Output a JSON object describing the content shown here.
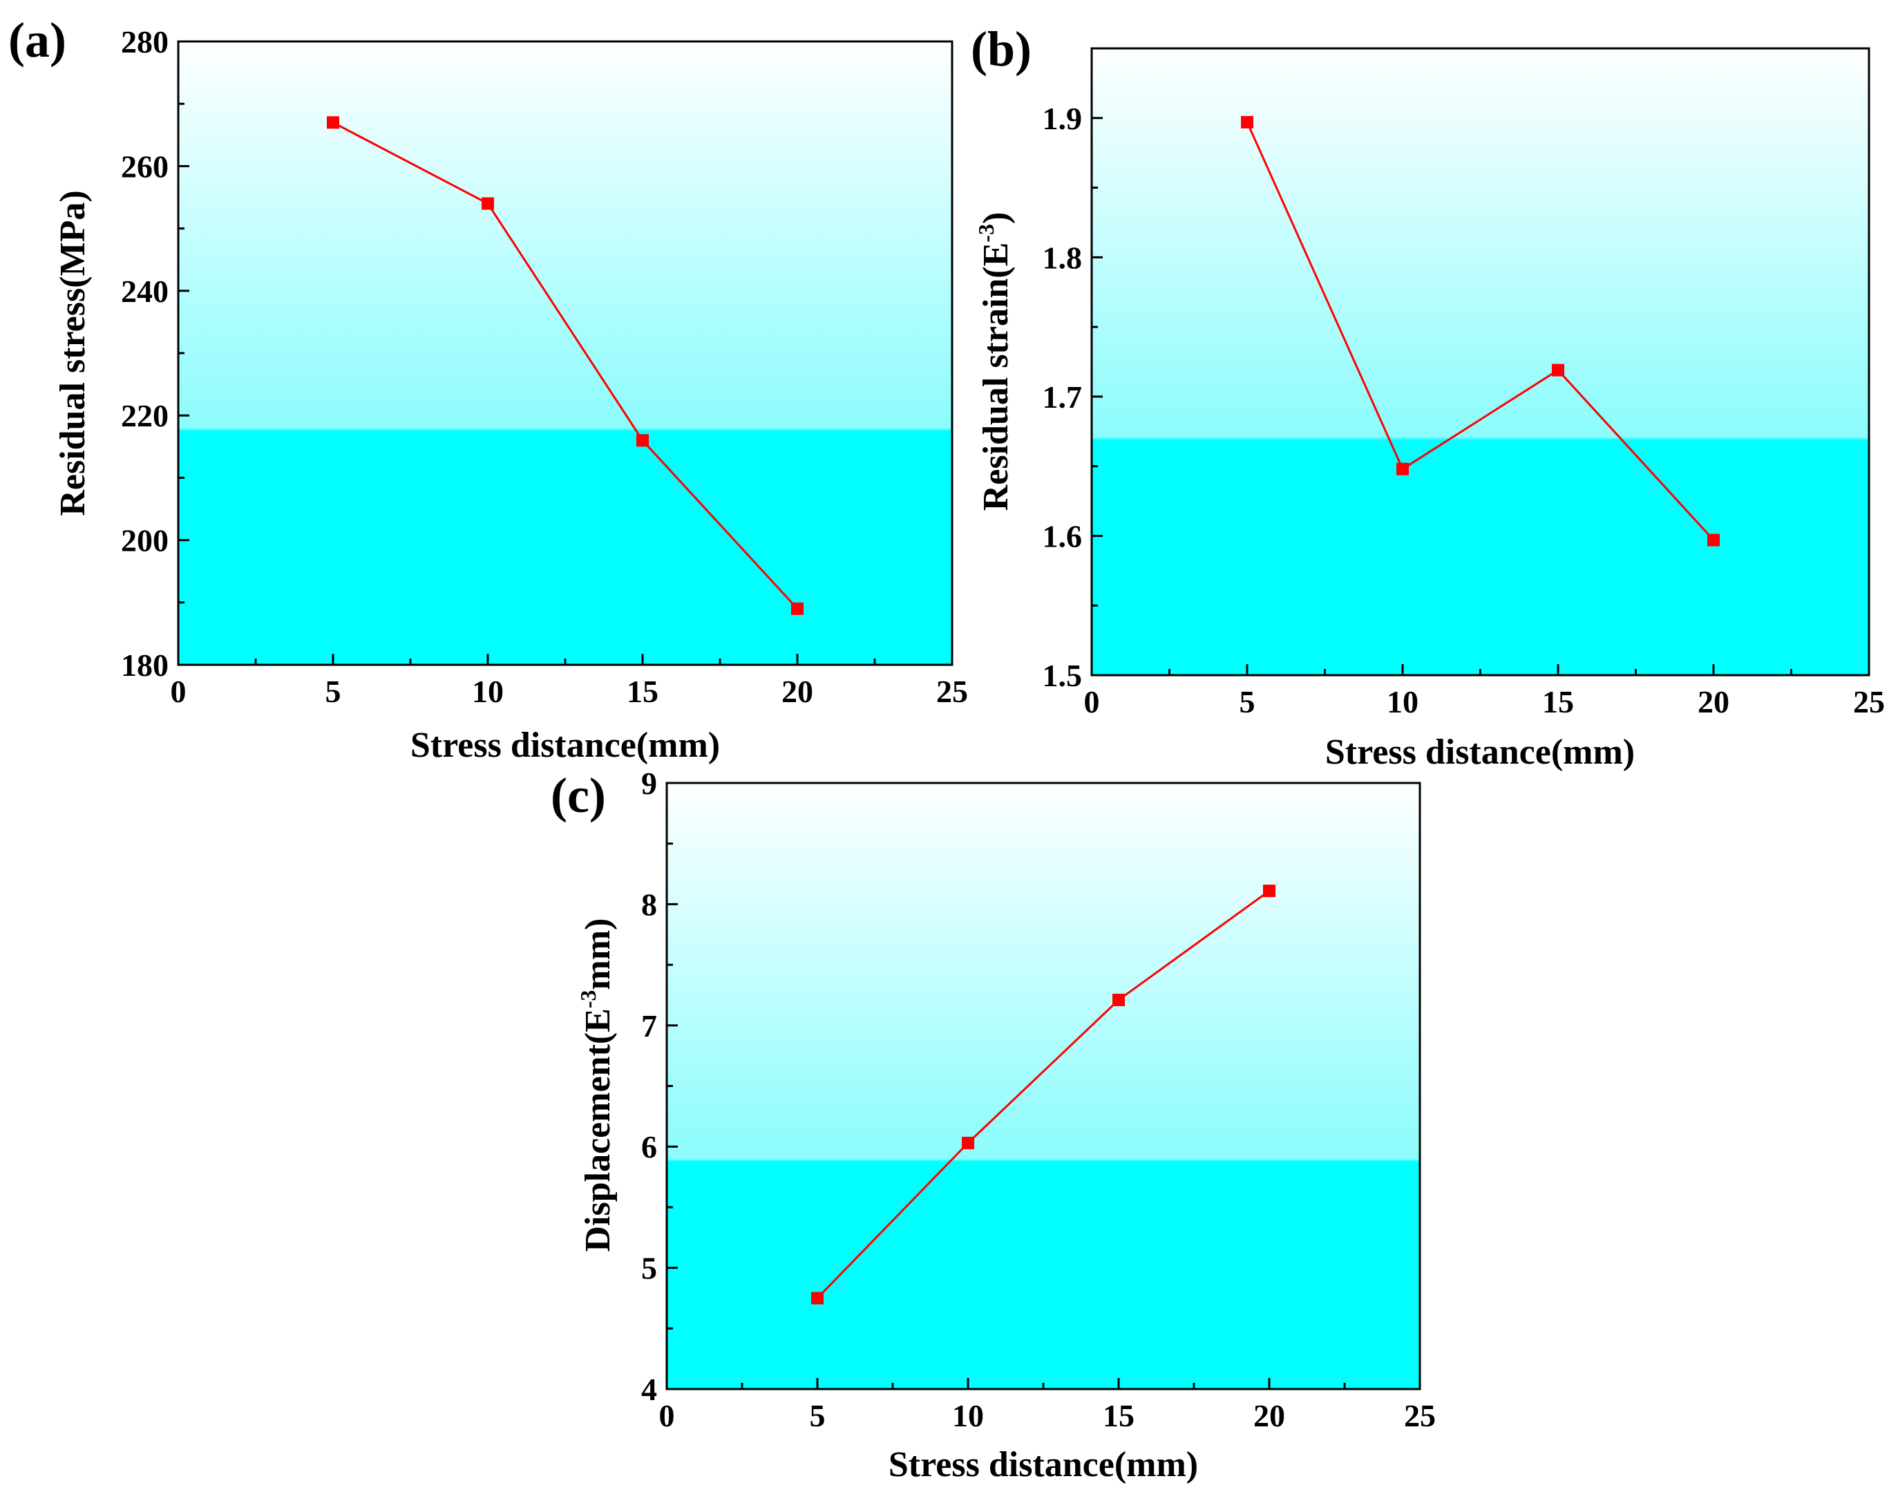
{
  "colors": {
    "plot_top": "#ffffff",
    "plot_bottom": "#00ffff",
    "series_line": "#ff0000",
    "marker": "#ff0000",
    "axis": "#000000"
  },
  "chart_data": [
    {
      "id": "a",
      "type": "line",
      "panel_label": "(a)",
      "xlabel": "Stress distance(mm)",
      "ylabel": "Residual stress(MPa)",
      "ylabel_parts": {
        "pre": "Residual stress(MPa)",
        "sup": "",
        "post": ""
      },
      "xlim": [
        0,
        25
      ],
      "ylim": [
        180,
        280
      ],
      "xticks": [
        0,
        5,
        10,
        15,
        20,
        25
      ],
      "yticks": [
        180,
        200,
        220,
        240,
        260,
        280
      ],
      "x": [
        5,
        10,
        15,
        20
      ],
      "y": [
        267,
        254,
        216,
        189
      ],
      "marker": "square",
      "legend": "none"
    },
    {
      "id": "b",
      "type": "line",
      "panel_label": "(b)",
      "xlabel": "Stress distance(mm)",
      "ylabel": "Residual strain(E-3)",
      "ylabel_parts": {
        "pre": "Residual strain(E",
        "sup": "-3",
        "post": ")"
      },
      "xlim": [
        0,
        25
      ],
      "ylim": [
        1.5,
        1.95
      ],
      "xticks": [
        0,
        5,
        10,
        15,
        20,
        25
      ],
      "yticks": [
        1.5,
        1.6,
        1.7,
        1.8,
        1.9
      ],
      "ytick_labels": [
        "1.5",
        "1.6",
        "1.7",
        "1.8",
        "1.9"
      ],
      "x": [
        5,
        10,
        15,
        20
      ],
      "y": [
        1.897,
        1.648,
        1.719,
        1.597
      ],
      "marker": "square",
      "legend": "none"
    },
    {
      "id": "c",
      "type": "line",
      "panel_label": "(c)",
      "xlabel": "Stress distance(mm)",
      "ylabel": "Displacement(E-3mm)",
      "ylabel_parts": {
        "pre": "Displacement(E",
        "sup": "-3",
        "post": "mm)"
      },
      "xlim": [
        0,
        25
      ],
      "ylim": [
        4,
        9
      ],
      "xticks": [
        0,
        5,
        10,
        15,
        20,
        25
      ],
      "yticks": [
        4,
        5,
        6,
        7,
        8,
        9
      ],
      "x": [
        5,
        10,
        15,
        20
      ],
      "y": [
        4.75,
        6.03,
        7.21,
        8.11
      ],
      "marker": "square",
      "legend": "none"
    }
  ]
}
